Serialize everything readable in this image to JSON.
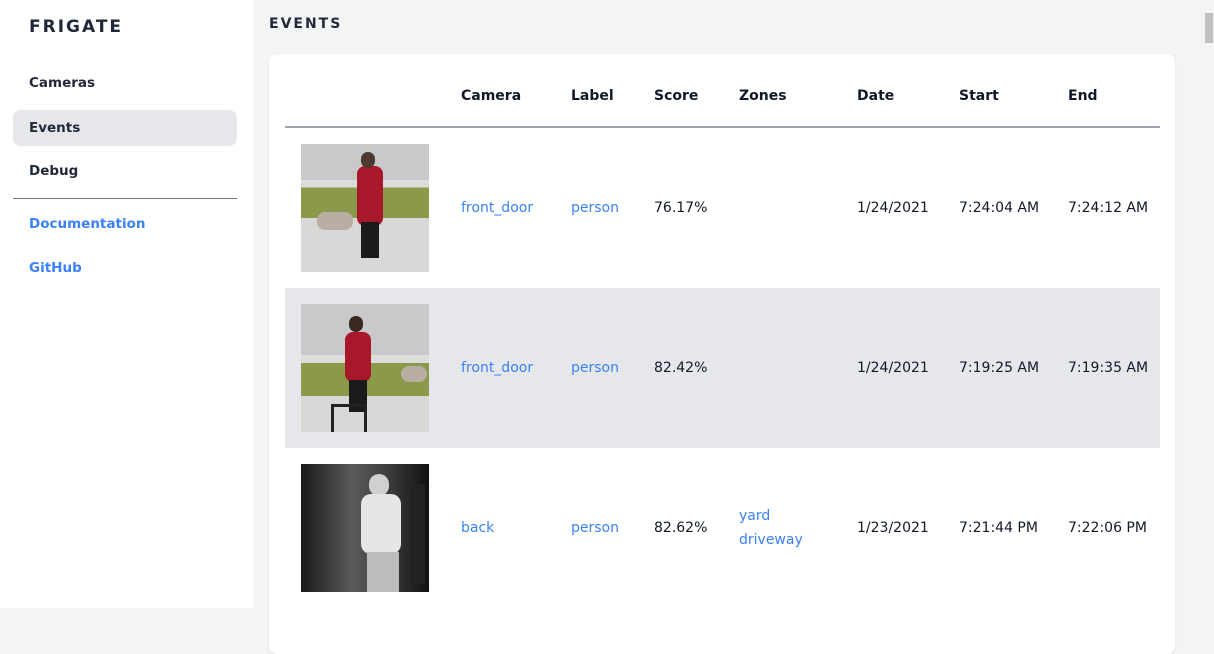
{
  "sidebar": {
    "brand": "FRIGATE",
    "items": [
      {
        "label": "Cameras"
      },
      {
        "label": "Events",
        "active": true
      },
      {
        "label": "Debug"
      }
    ],
    "links": [
      {
        "label": "Documentation"
      },
      {
        "label": "GitHub"
      }
    ]
  },
  "page": {
    "title": "EVENTS"
  },
  "table": {
    "headers": [
      "Camera",
      "Label",
      "Score",
      "Zones",
      "Date",
      "Start",
      "End"
    ],
    "rows": [
      {
        "camera": "front_door",
        "label": "person",
        "score": "76.17%",
        "zones": [
          "",
          ""
        ],
        "date": "1/24/2021",
        "start": "7:24:04 AM",
        "end": "7:24:12 AM"
      },
      {
        "camera": "front_door",
        "label": "person",
        "score": "82.42%",
        "zones": [
          "",
          ""
        ],
        "date": "1/24/2021",
        "start": "7:19:25 AM",
        "end": "7:19:35 AM"
      },
      {
        "camera": "back",
        "label": "person",
        "score": "82.62%",
        "zones": [
          "yard",
          "driveway"
        ],
        "date": "1/23/2021",
        "start": "7:21:44 PM",
        "end": "7:22:06 PM"
      }
    ]
  },
  "colors": {
    "accent": "#3b82f6",
    "active_bg": "#e5e7eb",
    "page_bg": "#f3f4f6"
  }
}
